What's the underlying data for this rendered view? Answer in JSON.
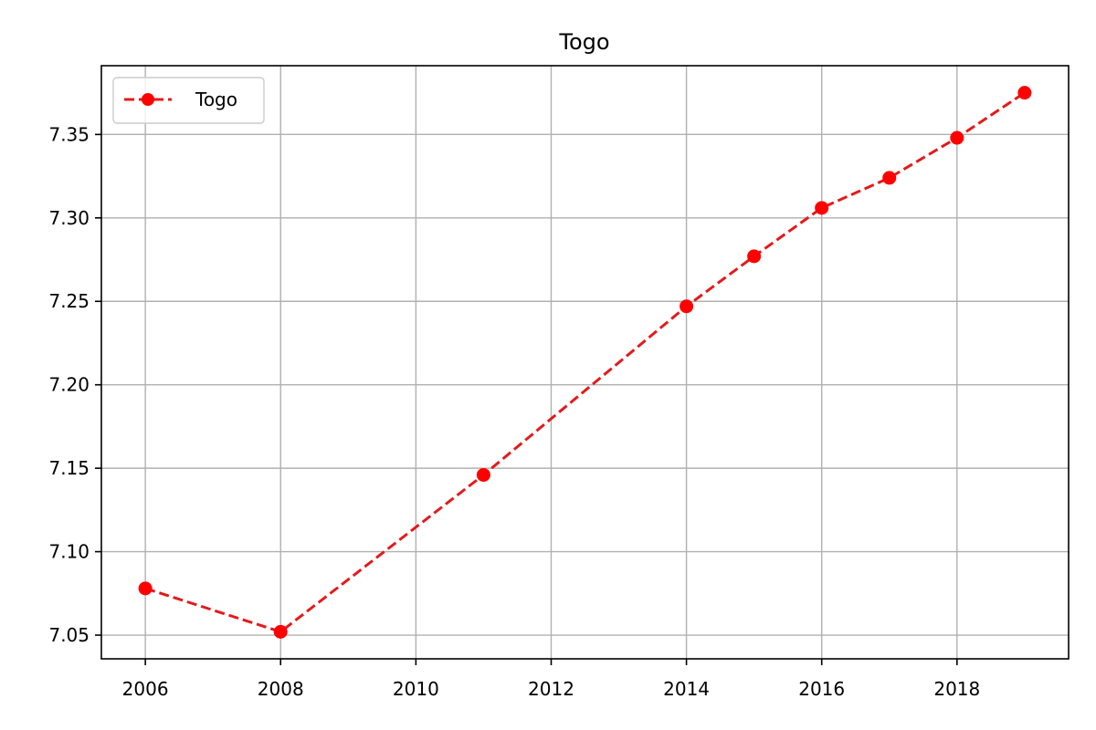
{
  "chart_data": {
    "type": "line",
    "title": "Togo",
    "xlabel": "",
    "ylabel": "",
    "x": [
      2006,
      2008,
      2011,
      2014,
      2015,
      2016,
      2017,
      2018,
      2019
    ],
    "series": [
      {
        "name": "Togo",
        "values": [
          7.078,
          7.052,
          7.146,
          7.247,
          7.277,
          7.306,
          7.324,
          7.348,
          7.375
        ],
        "color": "#ff0000",
        "line_color": "#e31a1c",
        "line_style": "dashed",
        "marker": "circle"
      }
    ],
    "xlim": [
      2005.35,
      2019.65
    ],
    "ylim": [
      7.0358,
      7.3912
    ],
    "xticks": [
      2006,
      2008,
      2010,
      2012,
      2014,
      2016,
      2018
    ],
    "xtick_labels": [
      "2006",
      "2008",
      "2010",
      "2012",
      "2014",
      "2016",
      "2018"
    ],
    "yticks": [
      7.05,
      7.1,
      7.15,
      7.2,
      7.25,
      7.3,
      7.35
    ],
    "ytick_labels": [
      "7.05",
      "7.10",
      "7.15",
      "7.20",
      "7.25",
      "7.30",
      "7.35"
    ],
    "grid": true,
    "legend": "top-left"
  }
}
